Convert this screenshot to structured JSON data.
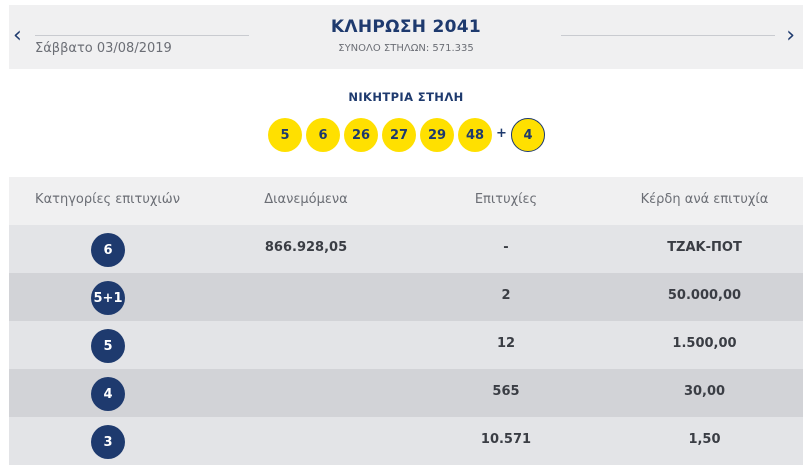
{
  "header": {
    "prev_icon": "chevron-left-icon",
    "next_icon": "chevron-right-icon",
    "date": "Σάββατο 03/08/2019",
    "title": "ΚΛΗΡΩΣΗ 2041",
    "total_columns": "ΣΥΝΟΛΟ ΣΤΗΛΩΝ: 571.335"
  },
  "winning": {
    "label": "ΝΙΚΗΤΡΙΑ ΣΤΗΛΗ",
    "numbers": [
      "5",
      "6",
      "26",
      "27",
      "29",
      "48"
    ],
    "plus": "+",
    "bonus": "4"
  },
  "table": {
    "headers": [
      "Κατηγορίες επιτυχιών",
      "Διανεμόμενα",
      "Επιτυχίες",
      "Κέρδη ανά επιτυχία"
    ],
    "rows": [
      {
        "category": "6",
        "distributed": "866.928,05",
        "winners": "-",
        "prize": "ΤΖΑΚ-ΠΟΤ"
      },
      {
        "category": "5+1",
        "distributed": "",
        "winners": "2",
        "prize": "50.000,00"
      },
      {
        "category": "5",
        "distributed": "",
        "winners": "12",
        "prize": "1.500,00"
      },
      {
        "category": "4",
        "distributed": "",
        "winners": "565",
        "prize": "30,00"
      },
      {
        "category": "3",
        "distributed": "",
        "winners": "10.571",
        "prize": "1,50"
      }
    ]
  },
  "colors": {
    "navy": "#1e3a6e",
    "ball_yellow": "#ffe000",
    "header_bg": "#f0f0f1",
    "row_light": "#e3e4e7",
    "row_dark": "#d2d3d7"
  }
}
